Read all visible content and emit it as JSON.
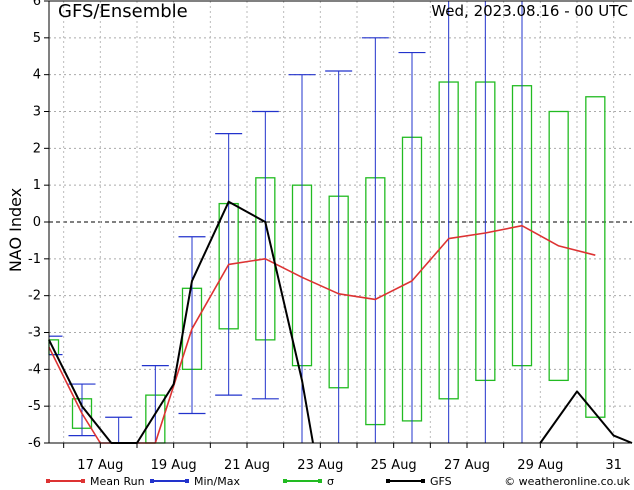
{
  "chart_data": {
    "type": "box-line",
    "title": "GFS/Ensemble",
    "subtitle": "Wed, 2023.08.16 - 00 UTC",
    "ylabel": "NAO Index",
    "ylim": [
      -6,
      6
    ],
    "yticks": [
      "-6",
      "-5",
      "-4",
      "-3",
      "-2",
      "-1",
      "0",
      "1",
      "2",
      "3",
      "4",
      "5",
      "6"
    ],
    "xlim": [
      15.6,
      31.5
    ],
    "xticks": [
      {
        "x": 17,
        "label": "17 Aug"
      },
      {
        "x": 19,
        "label": "19 Aug"
      },
      {
        "x": 21,
        "label": "21 Aug"
      },
      {
        "x": 23,
        "label": "23 Aug"
      },
      {
        "x": 25,
        "label": "25 Aug"
      },
      {
        "x": 27,
        "label": "27 Aug"
      },
      {
        "x": 29,
        "label": "29 Aug"
      },
      {
        "x": 31,
        "label": "31"
      }
    ],
    "grid": true,
    "colors": {
      "mean": "#dd3333",
      "minmax": "#2233cc",
      "sigma": "#22bb22",
      "gfs": "#000000"
    },
    "minmax": [
      {
        "x": 15.6,
        "min": -3.6,
        "max": -3.1
      },
      {
        "x": 16.5,
        "min": -5.8,
        "max": -4.4
      },
      {
        "x": 17.5,
        "min": -6.0,
        "max": -5.3
      },
      {
        "x": 18.5,
        "min": -6.0,
        "max": -3.9
      },
      {
        "x": 19.5,
        "min": -5.2,
        "max": -0.4
      },
      {
        "x": 20.5,
        "min": -4.7,
        "max": 2.4
      },
      {
        "x": 21.5,
        "min": -4.8,
        "max": 3.0
      },
      {
        "x": 22.5,
        "min": -6.0,
        "max": 4.0
      },
      {
        "x": 23.5,
        "min": -6.0,
        "max": 4.1
      },
      {
        "x": 24.5,
        "min": -6.0,
        "max": 5.0
      },
      {
        "x": 25.5,
        "min": -6.0,
        "max": 4.6
      },
      {
        "x": 26.5,
        "min": -6.0,
        "max": 6.0
      },
      {
        "x": 27.5,
        "min": -6.0,
        "max": 6.0
      },
      {
        "x": 28.5,
        "min": -6.0,
        "max": 6.0
      }
    ],
    "sigma": [
      {
        "x": 15.6,
        "low": -3.6,
        "high": -3.2
      },
      {
        "x": 16.5,
        "low": -5.6,
        "high": -4.8
      },
      {
        "x": 18.5,
        "low": -6.0,
        "high": -4.7
      },
      {
        "x": 19.5,
        "low": -4.0,
        "high": -1.8
      },
      {
        "x": 20.5,
        "low": -2.9,
        "high": 0.5
      },
      {
        "x": 21.5,
        "low": -3.2,
        "high": 1.2
      },
      {
        "x": 22.5,
        "low": -3.9,
        "high": 1.0
      },
      {
        "x": 23.5,
        "low": -4.5,
        "high": 0.7
      },
      {
        "x": 24.5,
        "low": -5.5,
        "high": 1.2
      },
      {
        "x": 25.5,
        "low": -5.4,
        "high": 2.3
      },
      {
        "x": 26.5,
        "low": -4.8,
        "high": 3.8
      },
      {
        "x": 27.5,
        "low": -4.3,
        "high": 3.8
      },
      {
        "x": 28.5,
        "low": -3.9,
        "high": 3.7
      },
      {
        "x": 29.5,
        "low": -4.3,
        "high": 3.0
      },
      {
        "x": 30.5,
        "low": -5.3,
        "high": 3.4
      }
    ],
    "series": [
      {
        "name": "Mean Run",
        "points": [
          [
            15.6,
            -3.4
          ],
          [
            16.5,
            -5.2
          ],
          [
            17.0,
            -6.0
          ],
          [
            18.5,
            -6.0
          ],
          [
            19.5,
            -2.9
          ],
          [
            20.5,
            -1.15
          ],
          [
            21.5,
            -1.0
          ],
          [
            22.5,
            -1.5
          ],
          [
            23.5,
            -1.95
          ],
          [
            24.5,
            -2.1
          ],
          [
            25.5,
            -1.6
          ],
          [
            26.5,
            -0.45
          ],
          [
            27.5,
            -0.3
          ],
          [
            28.5,
            -0.1
          ],
          [
            29.5,
            -0.65
          ],
          [
            30.5,
            -0.9
          ]
        ]
      },
      {
        "name": "GFS",
        "points": [
          [
            15.6,
            -3.2
          ],
          [
            16.5,
            -5.0
          ],
          [
            17.3,
            -6.0
          ],
          [
            18.0,
            -6.0
          ],
          [
            19.0,
            -4.4
          ],
          [
            19.5,
            -1.6
          ],
          [
            20.5,
            0.55
          ],
          [
            21.5,
            0.0
          ],
          [
            22.5,
            -4.3
          ],
          [
            22.8,
            -6.0
          ]
        ]
      },
      {
        "name": "GFS",
        "points": [
          [
            29.0,
            -6.0
          ],
          [
            30.0,
            -4.6
          ],
          [
            31.0,
            -5.8
          ],
          [
            31.5,
            -6.0
          ]
        ]
      }
    ],
    "legend": [
      {
        "label": "Mean Run",
        "color": "#dd3333"
      },
      {
        "label": "Min/Max",
        "color": "#2233cc"
      },
      {
        "label": "σ",
        "color": "#22bb22"
      },
      {
        "label": "GFS",
        "color": "#000000"
      },
      {
        "label": "© weatheronline.co.uk",
        "color": "#000000"
      }
    ]
  }
}
